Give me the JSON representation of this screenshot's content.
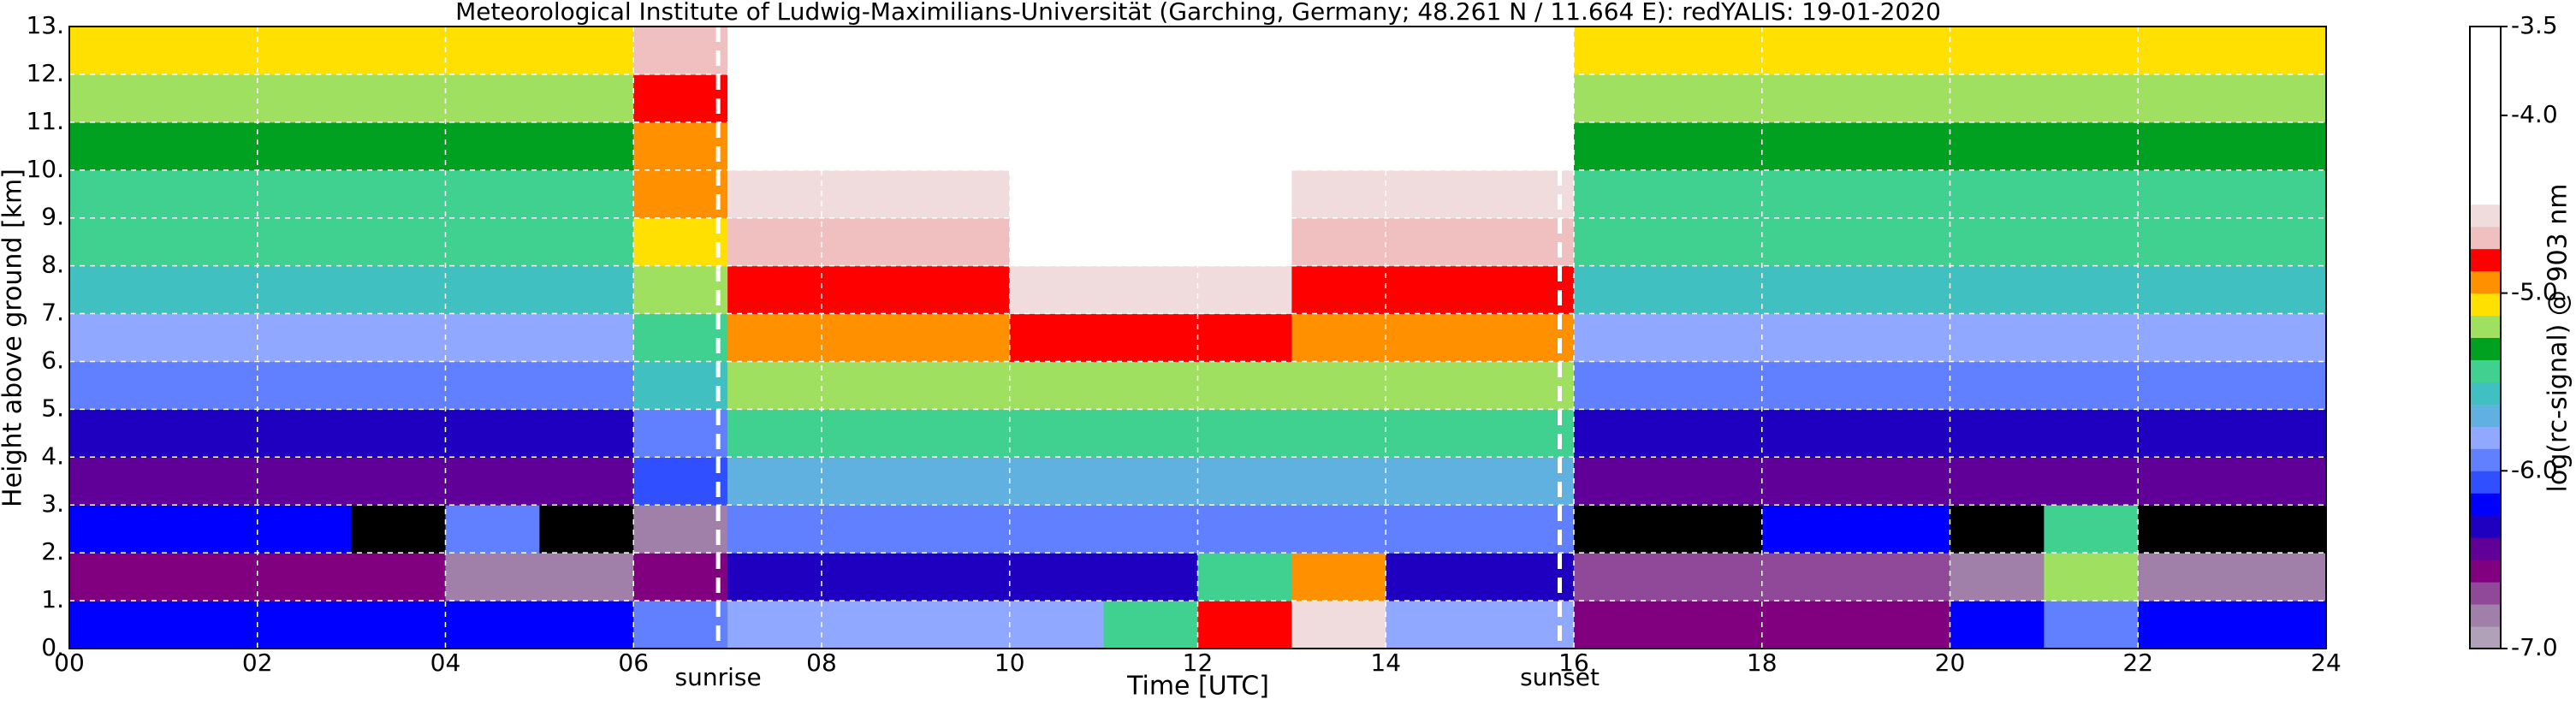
{
  "chart_data": {
    "type": "heatmap",
    "title": "Meteorological Institute of Ludwig-Maximilians-Universität (Garching, Germany; 48.261 N / 11.664 E):     redYALIS: 19-01-2020",
    "xlabel": "Time [UTC]",
    "ylabel": "Height above ground [km]",
    "colorbar_label": "log(rc-signal) @ 903 nm",
    "xlim": [
      0,
      24
    ],
    "ylim": [
      0,
      13
    ],
    "xticks": [
      {
        "value": 0,
        "label": "00"
      },
      {
        "value": 2,
        "label": "02"
      },
      {
        "value": 4,
        "label": "04"
      },
      {
        "value": 6,
        "label": "06"
      },
      {
        "value": 8,
        "label": "08"
      },
      10,
      12,
      14,
      16,
      18,
      20,
      22,
      24
    ],
    "yticks": [
      {
        "value": 0,
        "label": "0."
      },
      {
        "value": 1,
        "label": "1."
      },
      {
        "value": 2,
        "label": "2."
      },
      {
        "value": 3,
        "label": "3."
      },
      {
        "value": 4,
        "label": "4."
      },
      {
        "value": 5,
        "label": "5."
      },
      {
        "value": 6,
        "label": "6."
      },
      {
        "value": 7,
        "label": "7."
      },
      {
        "value": 8,
        "label": "8."
      },
      {
        "value": 9,
        "label": "9."
      },
      {
        "value": 10,
        "label": "10."
      },
      {
        "value": 11,
        "label": "11."
      },
      {
        "value": 12,
        "label": "12."
      },
      {
        "value": 13,
        "label": "13."
      }
    ],
    "grid": true,
    "grid_color": "#ffffff",
    "clim": [
      -7,
      -3.5
    ],
    "cticks": [
      -3.5,
      {
        "value": -4,
        "label": "-4.0"
      },
      {
        "value": -5,
        "label": "-5.0"
      },
      {
        "value": -6,
        "label": "-6.0"
      },
      {
        "value": -7,
        "label": "-7.0"
      }
    ],
    "colormap": [
      "#b0a0b8",
      "#a080a8",
      "#904898",
      "#800080",
      "#600098",
      "#2000c0",
      "#0000ff",
      "#3050ff",
      "#6080ff",
      "#90a8ff",
      "#60b0e0",
      "#40c0c0",
      "#40d090",
      "#00a020",
      "#a0e060",
      "#ffe000",
      "#ff9000",
      "#ff0000",
      "#f0c0c0",
      "#f0dcdc",
      "#ffffff",
      "#ffffff",
      "#ffffff",
      "#ffffff",
      "#ffffff",
      "#ffffff",
      "#ffffff",
      "#ffffff"
    ],
    "under_color": "#000000",
    "xbins": [
      0,
      1,
      2,
      3,
      4,
      5,
      6,
      7,
      8,
      9,
      10,
      11,
      12,
      13,
      14,
      15,
      16,
      17,
      18,
      19,
      20,
      21,
      22,
      23,
      24
    ],
    "ybins": [
      0,
      1,
      2,
      3,
      4,
      5,
      6,
      7,
      8,
      9,
      10,
      11,
      12,
      13
    ],
    "z": [
      [
        -6.2,
        -6.2,
        -6.2,
        -6.2,
        -6.2,
        -6.2,
        -6.0,
        -5.8,
        -5.8,
        -5.8,
        -5.8,
        -5.5,
        -4.8,
        -4.6,
        -5.8,
        -5.8,
        -6.6,
        -6.6,
        -6.6,
        -6.6,
        -6.2,
        -6.0,
        -6.2,
        -6.2
      ],
      [
        -6.6,
        -6.6,
        -6.6,
        -6.6,
        -6.8,
        -6.8,
        -6.6,
        -6.3,
        -6.3,
        -6.3,
        -6.3,
        -6.3,
        -5.5,
        -5.0,
        -6.3,
        -6.3,
        -6.7,
        -6.7,
        -6.7,
        -6.7,
        -6.8,
        -5.2,
        -6.8,
        -6.8
      ],
      [
        -6.2,
        -6.2,
        -6.2,
        -7.5,
        -6.0,
        -7.5,
        -6.8,
        -6.0,
        -6.0,
        -6.0,
        -6.0,
        -6.0,
        -6.0,
        -6.0,
        -6.0,
        -6.0,
        -7.5,
        -7.5,
        -6.2,
        -6.2,
        -7.5,
        -5.5,
        -7.5,
        -7.5
      ],
      [
        -6.5,
        -6.5,
        -6.5,
        -6.5,
        -6.5,
        -6.5,
        -6.1,
        -5.7,
        -5.7,
        -5.7,
        -5.7,
        -5.7,
        -5.7,
        -5.7,
        -5.7,
        -5.7,
        -6.5,
        -6.5,
        -6.5,
        -6.5,
        -6.5,
        -6.5,
        -6.5,
        -6.5
      ],
      [
        -6.3,
        -6.3,
        -6.3,
        -6.3,
        -6.3,
        -6.3,
        -5.9,
        -5.4,
        -5.4,
        -5.4,
        -5.4,
        -5.4,
        -5.4,
        -5.4,
        -5.4,
        -5.4,
        -6.3,
        -6.3,
        -6.3,
        -6.3,
        -6.3,
        -6.3,
        -6.3,
        -6.3
      ],
      [
        -6.0,
        -6.0,
        -6.0,
        -6.0,
        -6.0,
        -6.0,
        -5.6,
        -5.2,
        -5.2,
        -5.2,
        -5.2,
        -5.2,
        -5.2,
        -5.2,
        -5.2,
        -5.2,
        -6.0,
        -6.0,
        -6.0,
        -6.0,
        -6.0,
        -6.0,
        -6.0,
        -6.0
      ],
      [
        -5.8,
        -5.8,
        -5.8,
        -5.8,
        -5.8,
        -5.8,
        -5.4,
        -5.0,
        -5.0,
        -5.0,
        -4.8,
        -4.8,
        -4.8,
        -5.0,
        -5.0,
        -5.0,
        -5.8,
        -5.8,
        -5.8,
        -5.8,
        -5.8,
        -5.8,
        -5.8,
        -5.8
      ],
      [
        -5.6,
        -5.6,
        -5.6,
        -5.6,
        -5.6,
        -5.6,
        -5.2,
        -4.8,
        -4.8,
        -4.8,
        -4.6,
        -4.6,
        -4.6,
        -4.8,
        -4.8,
        -4.8,
        -5.6,
        -5.6,
        -5.6,
        -5.6,
        -5.6,
        -5.6,
        -5.6,
        -5.6
      ],
      [
        -5.5,
        -5.5,
        -5.5,
        -5.5,
        -5.5,
        -5.5,
        -5.1,
        -4.7,
        -4.7,
        -4.7,
        -4.5,
        -4.5,
        -4.5,
        -4.7,
        -4.7,
        -4.7,
        -5.5,
        -5.5,
        -5.5,
        -5.5,
        -5.5,
        -5.5,
        -5.5,
        -5.5
      ],
      [
        -5.4,
        -5.4,
        -5.4,
        -5.4,
        -5.4,
        -5.4,
        -5.0,
        -4.6,
        -4.6,
        -4.6,
        -4.4,
        -4.4,
        -4.4,
        -4.6,
        -4.6,
        -4.6,
        -5.4,
        -5.4,
        -5.4,
        -5.4,
        -5.4,
        -5.4,
        -5.4,
        -5.4
      ],
      [
        -5.3,
        -5.3,
        -5.3,
        -5.3,
        -5.3,
        -5.3,
        -4.9,
        -4.5,
        -4.5,
        -4.5,
        -4.3,
        -4.3,
        -4.3,
        -4.5,
        -4.5,
        -4.5,
        -5.3,
        -5.3,
        -5.3,
        -5.3,
        -5.3,
        -5.3,
        -5.3,
        -5.3
      ],
      [
        -5.2,
        -5.2,
        -5.2,
        -5.2,
        -5.2,
        -5.2,
        -4.8,
        -4.4,
        -4.4,
        -4.4,
        -4.2,
        -4.2,
        -4.2,
        -4.4,
        -4.4,
        -4.4,
        -5.2,
        -5.2,
        -5.2,
        -5.2,
        -5.2,
        -5.2,
        -5.2,
        -5.2
      ],
      [
        -5.1,
        -5.1,
        -5.1,
        -5.1,
        -5.1,
        -5.1,
        -4.7,
        -4.3,
        -4.3,
        -4.3,
        -4.1,
        -4.1,
        -4.1,
        -4.3,
        -4.3,
        -4.3,
        -5.1,
        -5.1,
        -5.1,
        -5.1,
        -5.1,
        -5.1,
        -5.1,
        -5.1
      ]
    ],
    "annotations": [
      {
        "text": "sunrise",
        "x": 6.9
      },
      {
        "text": "sunset",
        "x": 15.85
      }
    ]
  }
}
